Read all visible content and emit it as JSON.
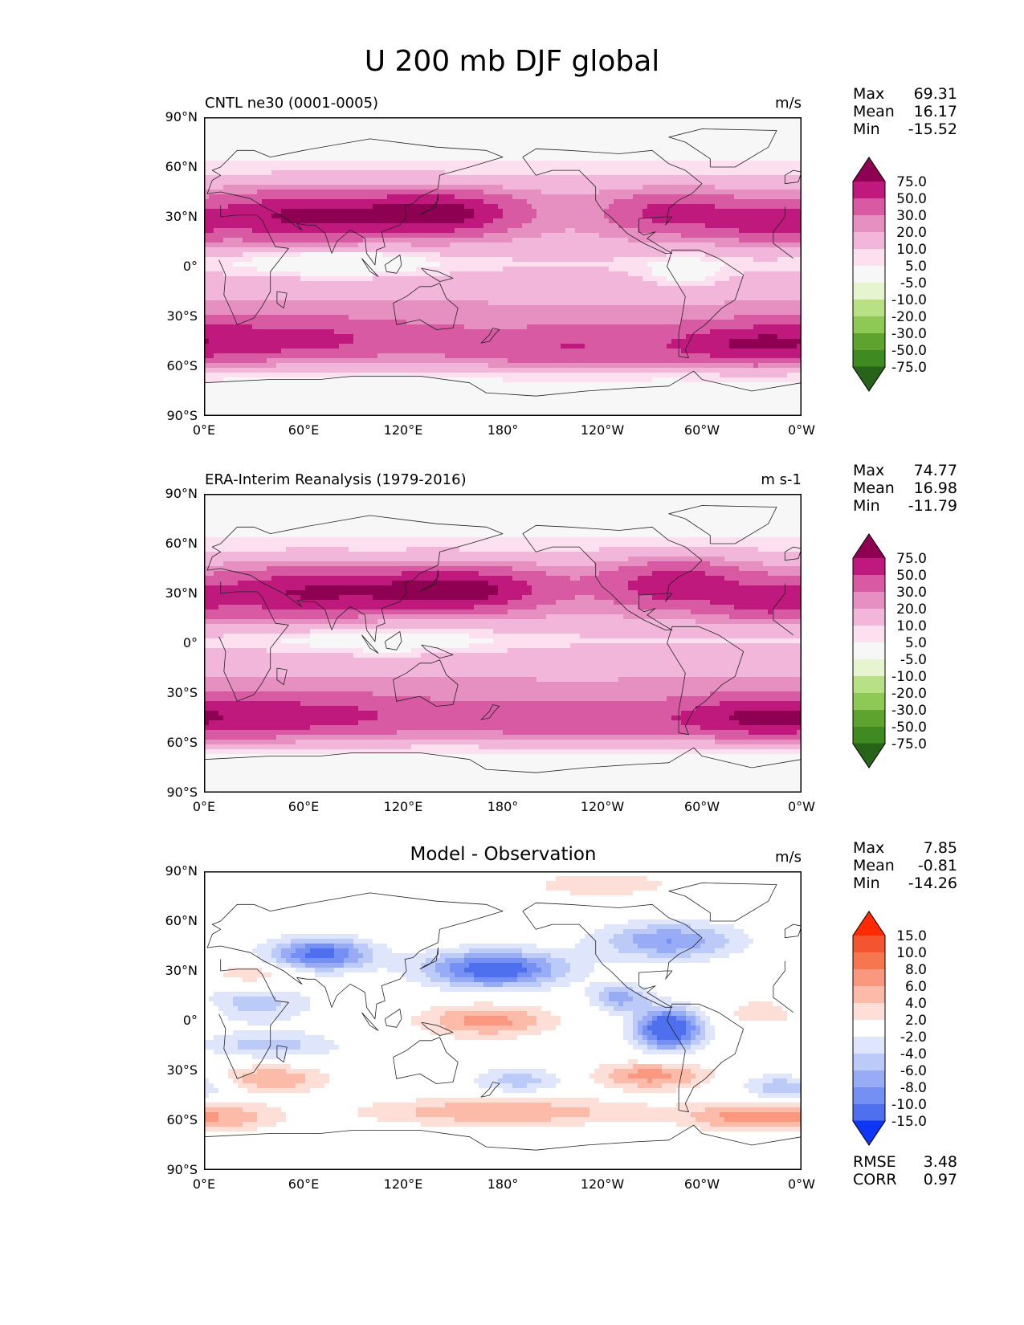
{
  "figure_title": "U 200 mb DJF global",
  "lat_labels": [
    "90°N",
    "60°N",
    "30°N",
    "0°",
    "30°S",
    "60°S",
    "90°S"
  ],
  "lon_labels": [
    "0°E",
    "60°E",
    "120°E",
    "180°",
    "120°W",
    "60°W",
    "0°W"
  ],
  "stat_names": {
    "max": "Max",
    "mean": "Mean",
    "min": "Min"
  },
  "colors": {
    "pink_levels": [
      "#f7f7f7",
      "#fde0ef",
      "#f1b6da",
      "#e690c1",
      "#d75aa2",
      "#c0197e",
      "#8e0152"
    ],
    "green_levels": [
      "#f7f7f7",
      "#e6f5d0",
      "#b8e186",
      "#8fc955",
      "#5fa32f",
      "#3f8a21",
      "#276419"
    ],
    "diff_pos": [
      "#ffffff",
      "#fedfd7",
      "#fcbba8",
      "#f9987e",
      "#f6764f",
      "#f25530",
      "#ff2a00"
    ],
    "diff_neg": [
      "#ffffff",
      "#dfe5fb",
      "#bccaf8",
      "#98acf5",
      "#7390f2",
      "#4f70ee",
      "#1036f5"
    ]
  },
  "chart_data": [
    {
      "type": "heatmap",
      "panel": "model",
      "title": "CNTL ne30 (0001-0005)",
      "units": "m/s",
      "stats": {
        "max": "69.31",
        "mean": "16.17",
        "min": "-15.52"
      },
      "colorbar_levels": [
        "75.0",
        "50.0",
        "30.0",
        "20.0",
        "10.0",
        "5.0",
        "-5.0",
        "-10.0",
        "-20.0",
        "-30.0",
        "-50.0",
        "-75.0"
      ],
      "x_range": [
        0,
        360
      ],
      "y_range": [
        -90,
        90
      ],
      "jets": [
        {
          "lon": 60,
          "lat": 30,
          "peak": 60,
          "wlon": 40,
          "wlat": 9
        },
        {
          "lon": 140,
          "lat": 32,
          "peak": 69,
          "wlon": 30,
          "wlat": 8
        },
        {
          "lon": 285,
          "lat": 32,
          "peak": 42,
          "wlon": 25,
          "wlat": 8
        },
        {
          "lon": 340,
          "lat": 26,
          "peak": 38,
          "wlon": 22,
          "wlat": 7
        },
        {
          "lon": 40,
          "lat": -45,
          "peak": 42,
          "wlon": 60,
          "wlat": 9
        },
        {
          "lon": 220,
          "lat": -50,
          "peak": 34,
          "wlon": 55,
          "wlat": 8
        },
        {
          "lon": 330,
          "lat": -48,
          "peak": 40,
          "wlon": 30,
          "wlat": 8
        },
        {
          "lon": 80,
          "lat": 3,
          "peak": -14,
          "wlon": 40,
          "wlat": 7
        },
        {
          "lon": 290,
          "lat": -5,
          "peak": -12,
          "wlon": 18,
          "wlat": 8
        }
      ]
    },
    {
      "type": "heatmap",
      "panel": "observation",
      "title": "ERA-Interim Reanalysis (1979-2016)",
      "units": "m s-1",
      "stats": {
        "max": "74.77",
        "mean": "16.98",
        "min": "-11.79"
      },
      "colorbar_levels": [
        "75.0",
        "50.0",
        "30.0",
        "20.0",
        "10.0",
        "5.0",
        "-5.0",
        "-10.0",
        "-20.0",
        "-30.0",
        "-50.0",
        "-75.0"
      ],
      "x_range": [
        0,
        360
      ],
      "y_range": [
        -90,
        90
      ],
      "jets": [
        {
          "lon": 60,
          "lat": 30,
          "peak": 55,
          "wlon": 40,
          "wlat": 9
        },
        {
          "lon": 150,
          "lat": 32,
          "peak": 74,
          "wlon": 35,
          "wlat": 8
        },
        {
          "lon": 285,
          "lat": 35,
          "peak": 48,
          "wlon": 28,
          "wlat": 9
        },
        {
          "lon": 340,
          "lat": 25,
          "peak": 40,
          "wlon": 22,
          "wlat": 7
        },
        {
          "lon": 50,
          "lat": -45,
          "peak": 44,
          "wlon": 60,
          "wlat": 9
        },
        {
          "lon": 230,
          "lat": -48,
          "peak": 30,
          "wlon": 55,
          "wlat": 8
        },
        {
          "lon": 335,
          "lat": -45,
          "peak": 42,
          "wlon": 30,
          "wlat": 8
        },
        {
          "lon": 110,
          "lat": 2,
          "peak": -11,
          "wlon": 45,
          "wlat": 7
        }
      ]
    },
    {
      "type": "heatmap",
      "panel": "difference",
      "title": "Model - Observation",
      "units": "m/s",
      "stats": {
        "max": "7.85",
        "mean": "-0.81",
        "min": "-14.26"
      },
      "colorbar_levels": [
        "15.0",
        "10.0",
        "8.0",
        "6.0",
        "4.0",
        "2.0",
        "-2.0",
        "-4.0",
        "-6.0",
        "-8.0",
        "-10.0",
        "-15.0"
      ],
      "rmse_label": "RMSE",
      "rmse": "3.48",
      "corr_label": "CORR",
      "corr": "0.97",
      "x_range": [
        0,
        360
      ],
      "y_range": [
        -90,
        90
      ],
      "blobs": [
        {
          "lon": 70,
          "lat": 40,
          "peak": -11,
          "wlon": 22,
          "wlat": 7
        },
        {
          "lon": 175,
          "lat": 31,
          "peak": -12,
          "wlon": 30,
          "wlat": 8
        },
        {
          "lon": 280,
          "lat": 48,
          "peak": -8,
          "wlon": 30,
          "wlat": 8
        },
        {
          "lon": 250,
          "lat": 14,
          "peak": -7,
          "wlon": 12,
          "wlat": 6
        },
        {
          "lon": 280,
          "lat": -5,
          "peak": -14,
          "wlon": 14,
          "wlat": 9
        },
        {
          "lon": 30,
          "lat": 10,
          "peak": -5,
          "wlon": 25,
          "wlat": 8
        },
        {
          "lon": 40,
          "lat": -15,
          "peak": -5,
          "wlon": 30,
          "wlat": 6
        },
        {
          "lon": 350,
          "lat": -40,
          "peak": -6,
          "wlon": 18,
          "wlat": 6
        },
        {
          "lon": 190,
          "lat": -36,
          "peak": -5,
          "wlon": 20,
          "wlat": 6
        },
        {
          "lon": 170,
          "lat": 0,
          "peak": 7,
          "wlon": 28,
          "wlat": 7
        },
        {
          "lon": 40,
          "lat": -35,
          "peak": 6,
          "wlon": 25,
          "wlat": 6
        },
        {
          "lon": 270,
          "lat": -33,
          "peak": 7,
          "wlon": 25,
          "wlat": 6
        },
        {
          "lon": 180,
          "lat": -55,
          "peak": 6,
          "wlon": 60,
          "wlat": 6
        },
        {
          "lon": 330,
          "lat": -58,
          "peak": 7,
          "wlon": 28,
          "wlat": 6
        },
        {
          "lon": 20,
          "lat": -58,
          "peak": 4,
          "wlon": 20,
          "wlat": 6
        },
        {
          "lon": 240,
          "lat": 82,
          "peak": 4,
          "wlon": 30,
          "wlat": 5
        },
        {
          "lon": 30,
          "lat": 28,
          "peak": 4,
          "wlon": 18,
          "wlat": 5
        },
        {
          "lon": 340,
          "lat": 5,
          "peak": 4,
          "wlon": 18,
          "wlat": 6
        }
      ]
    }
  ]
}
